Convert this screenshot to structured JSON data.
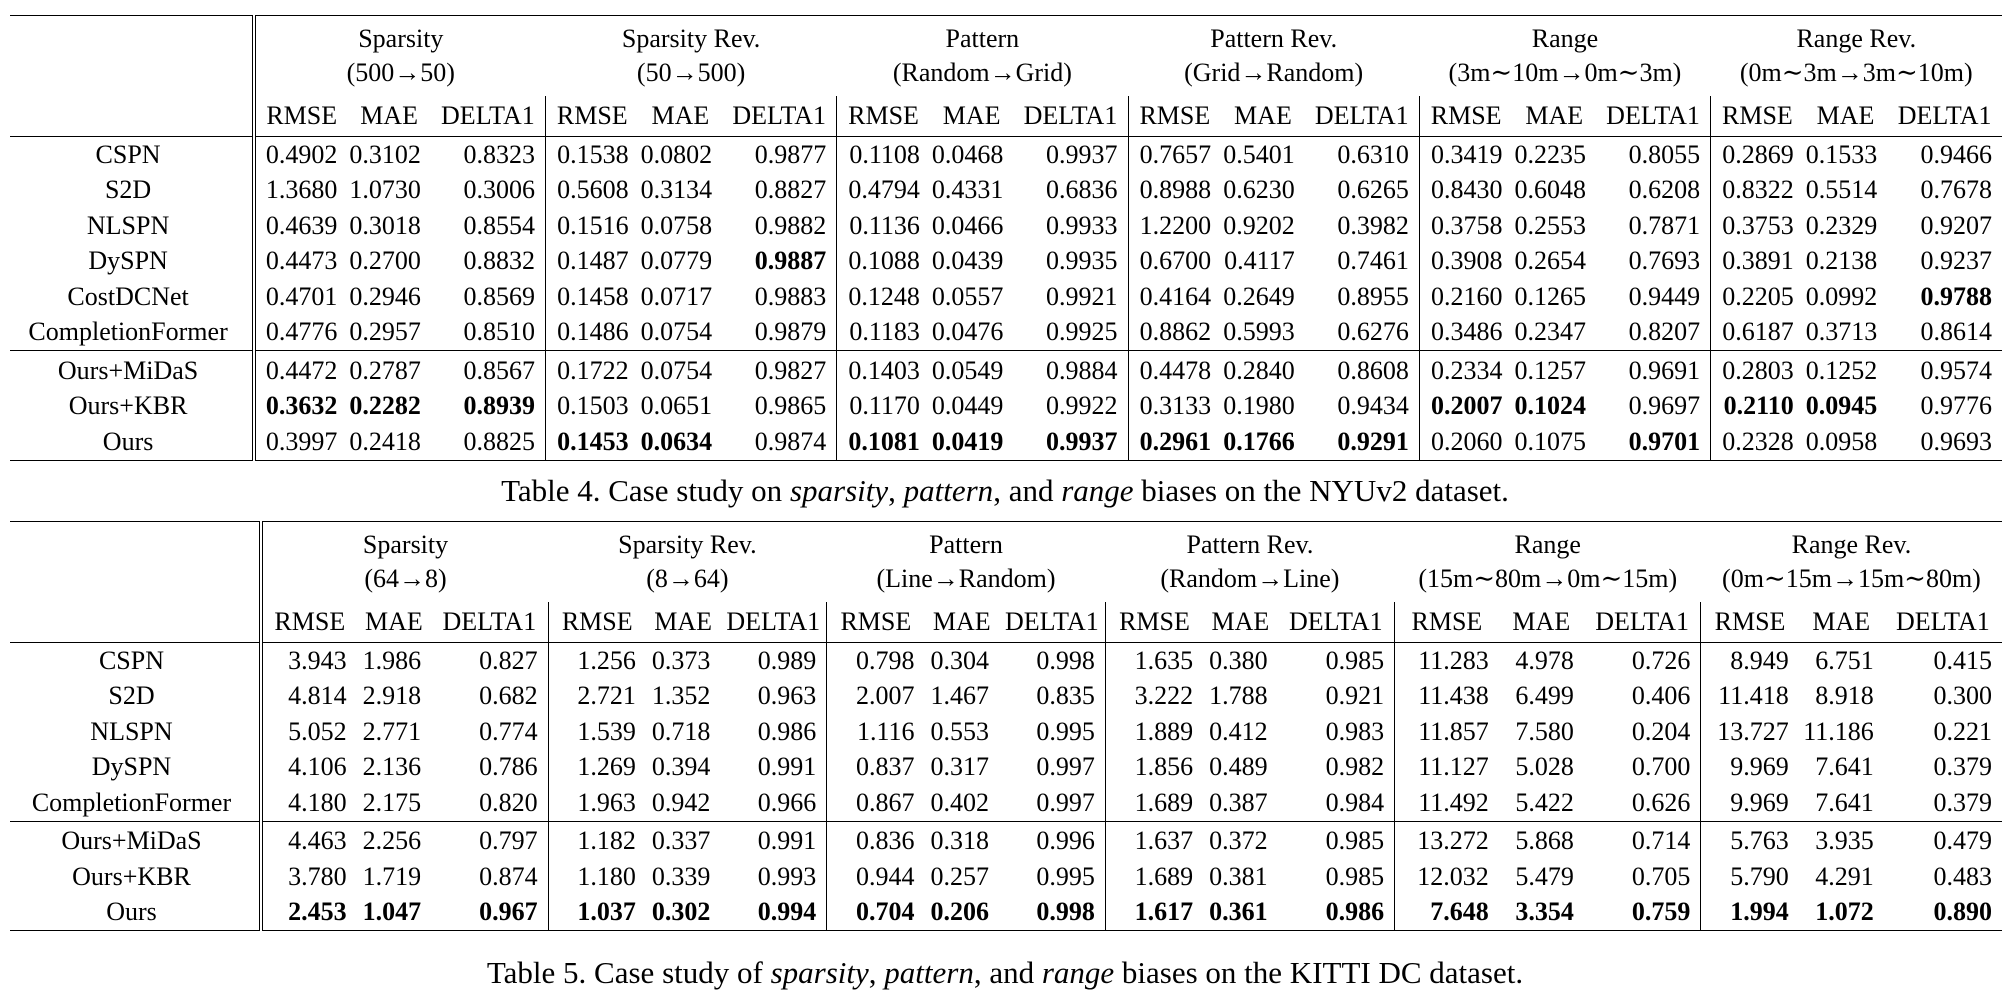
{
  "table4": {
    "caption": {
      "prefix": "Table 4. Case study on ",
      "w1": "sparsity",
      "sep1": ", ",
      "w2": "pattern",
      "sep2": ", and ",
      "w3": "range",
      "suffix": " biases on the NYUv2 dataset."
    },
    "groups": [
      {
        "name": "Sparsity",
        "sub": "(500→50)"
      },
      {
        "name": "Sparsity Rev.",
        "sub": "(50→500)"
      },
      {
        "name": "Pattern",
        "sub": "(Random→Grid)"
      },
      {
        "name": "Pattern Rev.",
        "sub": "(Grid→Random)"
      },
      {
        "name": "Range",
        "sub": "(3m∼10m→0m∼3m)"
      },
      {
        "name": "Range Rev.",
        "sub": "(0m∼3m→3m∼10m)"
      }
    ],
    "metrics": [
      "RMSE",
      "MAE",
      "DELTA1"
    ],
    "baselines": [
      {
        "method": "CSPN",
        "values": [
          "0.4902",
          "0.3102",
          "0.8323",
          "0.1538",
          "0.0802",
          "0.9877",
          "0.1108",
          "0.0468",
          "0.9937",
          "0.7657",
          "0.5401",
          "0.6310",
          "0.3419",
          "0.2235",
          "0.8055",
          "0.2869",
          "0.1533",
          "0.9466"
        ],
        "bold": []
      },
      {
        "method": "S2D",
        "values": [
          "1.3680",
          "1.0730",
          "0.3006",
          "0.5608",
          "0.3134",
          "0.8827",
          "0.4794",
          "0.4331",
          "0.6836",
          "0.8988",
          "0.6230",
          "0.6265",
          "0.8430",
          "0.6048",
          "0.6208",
          "0.8322",
          "0.5514",
          "0.7678"
        ],
        "bold": []
      },
      {
        "method": "NLSPN",
        "values": [
          "0.4639",
          "0.3018",
          "0.8554",
          "0.1516",
          "0.0758",
          "0.9882",
          "0.1136",
          "0.0466",
          "0.9933",
          "1.2200",
          "0.9202",
          "0.3982",
          "0.3758",
          "0.2553",
          "0.7871",
          "0.3753",
          "0.2329",
          "0.9207"
        ],
        "bold": []
      },
      {
        "method": "DySPN",
        "values": [
          "0.4473",
          "0.2700",
          "0.8832",
          "0.1487",
          "0.0779",
          "0.9887",
          "0.1088",
          "0.0439",
          "0.9935",
          "0.6700",
          "0.4117",
          "0.7461",
          "0.3908",
          "0.2654",
          "0.7693",
          "0.3891",
          "0.2138",
          "0.9237"
        ],
        "bold": [
          5
        ]
      },
      {
        "method": "CostDCNet",
        "values": [
          "0.4701",
          "0.2946",
          "0.8569",
          "0.1458",
          "0.0717",
          "0.9883",
          "0.1248",
          "0.0557",
          "0.9921",
          "0.4164",
          "0.2649",
          "0.8955",
          "0.2160",
          "0.1265",
          "0.9449",
          "0.2205",
          "0.0992",
          "0.9788"
        ],
        "bold": [
          17
        ]
      },
      {
        "method": "CompletionFormer",
        "values": [
          "0.4776",
          "0.2957",
          "0.8510",
          "0.1486",
          "0.0754",
          "0.9879",
          "0.1183",
          "0.0476",
          "0.9925",
          "0.8862",
          "0.5993",
          "0.6276",
          "0.3486",
          "0.2347",
          "0.8207",
          "0.6187",
          "0.3713",
          "0.8614"
        ],
        "bold": []
      }
    ],
    "ours": [
      {
        "method": "Ours+MiDaS",
        "values": [
          "0.4472",
          "0.2787",
          "0.8567",
          "0.1722",
          "0.0754",
          "0.9827",
          "0.1403",
          "0.0549",
          "0.9884",
          "0.4478",
          "0.2840",
          "0.8608",
          "0.2334",
          "0.1257",
          "0.9691",
          "0.2803",
          "0.1252",
          "0.9574"
        ],
        "bold": []
      },
      {
        "method": "Ours+KBR",
        "values": [
          "0.3632",
          "0.2282",
          "0.8939",
          "0.1503",
          "0.0651",
          "0.9865",
          "0.1170",
          "0.0449",
          "0.9922",
          "0.3133",
          "0.1980",
          "0.9434",
          "0.2007",
          "0.1024",
          "0.9697",
          "0.2110",
          "0.0945",
          "0.9776"
        ],
        "bold": [
          0,
          1,
          2,
          12,
          13,
          15,
          16
        ]
      },
      {
        "method": "Ours",
        "values": [
          "0.3997",
          "0.2418",
          "0.8825",
          "0.1453",
          "0.0634",
          "0.9874",
          "0.1081",
          "0.0419",
          "0.9937",
          "0.2961",
          "0.1766",
          "0.9291",
          "0.2060",
          "0.1075",
          "0.9701",
          "0.2328",
          "0.0958",
          "0.9693"
        ],
        "bold": [
          3,
          4,
          6,
          7,
          8,
          9,
          10,
          11,
          14
        ]
      }
    ]
  },
  "table5": {
    "caption": {
      "prefix": "Table 5. Case study of ",
      "w1": "sparsity",
      "sep1": ", ",
      "w2": "pattern",
      "sep2": ", and ",
      "w3": "range",
      "suffix": " biases on the KITTI DC dataset."
    },
    "groups": [
      {
        "name": "Sparsity",
        "sub": "(64→8)"
      },
      {
        "name": "Sparsity Rev.",
        "sub": "(8→64)"
      },
      {
        "name": "Pattern",
        "sub": "(Line→Random)"
      },
      {
        "name": "Pattern Rev.",
        "sub": "(Random→Line)"
      },
      {
        "name": "Range",
        "sub": "(15m∼80m→0m∼15m)"
      },
      {
        "name": "Range Rev.",
        "sub": "(0m∼15m→15m∼80m)"
      }
    ],
    "metrics": [
      "RMSE",
      "MAE",
      "DELTA1"
    ],
    "baselines": [
      {
        "method": "CSPN",
        "values": [
          "3.943",
          "1.986",
          "0.827",
          "1.256",
          "0.373",
          "0.989",
          "0.798",
          "0.304",
          "0.998",
          "1.635",
          "0.380",
          "0.985",
          "11.283",
          "4.978",
          "0.726",
          "8.949",
          "6.751",
          "0.415"
        ],
        "bold": []
      },
      {
        "method": "S2D",
        "values": [
          "4.814",
          "2.918",
          "0.682",
          "2.721",
          "1.352",
          "0.963",
          "2.007",
          "1.467",
          "0.835",
          "3.222",
          "1.788",
          "0.921",
          "11.438",
          "6.499",
          "0.406",
          "11.418",
          "8.918",
          "0.300"
        ],
        "bold": []
      },
      {
        "method": "NLSPN",
        "values": [
          "5.052",
          "2.771",
          "0.774",
          "1.539",
          "0.718",
          "0.986",
          "1.116",
          "0.553",
          "0.995",
          "1.889",
          "0.412",
          "0.983",
          "11.857",
          "7.580",
          "0.204",
          "13.727",
          "11.186",
          "0.221"
        ],
        "bold": []
      },
      {
        "method": "DySPN",
        "values": [
          "4.106",
          "2.136",
          "0.786",
          "1.269",
          "0.394",
          "0.991",
          "0.837",
          "0.317",
          "0.997",
          "1.856",
          "0.489",
          "0.982",
          "11.127",
          "5.028",
          "0.700",
          "9.969",
          "7.641",
          "0.379"
        ],
        "bold": []
      },
      {
        "method": "CompletionFormer",
        "values": [
          "4.180",
          "2.175",
          "0.820",
          "1.963",
          "0.942",
          "0.966",
          "0.867",
          "0.402",
          "0.997",
          "1.689",
          "0.387",
          "0.984",
          "11.492",
          "5.422",
          "0.626",
          "9.969",
          "7.641",
          "0.379"
        ],
        "bold": []
      }
    ],
    "ours": [
      {
        "method": "Ours+MiDaS",
        "values": [
          "4.463",
          "2.256",
          "0.797",
          "1.182",
          "0.337",
          "0.991",
          "0.836",
          "0.318",
          "0.996",
          "1.637",
          "0.372",
          "0.985",
          "13.272",
          "5.868",
          "0.714",
          "5.763",
          "3.935",
          "0.479"
        ],
        "bold": []
      },
      {
        "method": "Ours+KBR",
        "values": [
          "3.780",
          "1.719",
          "0.874",
          "1.180",
          "0.339",
          "0.993",
          "0.944",
          "0.257",
          "0.995",
          "1.689",
          "0.381",
          "0.985",
          "12.032",
          "5.479",
          "0.705",
          "5.790",
          "4.291",
          "0.483"
        ],
        "bold": []
      },
      {
        "method": "Ours",
        "values": [
          "2.453",
          "1.047",
          "0.967",
          "1.037",
          "0.302",
          "0.994",
          "0.704",
          "0.206",
          "0.998",
          "1.617",
          "0.361",
          "0.986",
          "7.648",
          "3.354",
          "0.759",
          "1.994",
          "1.072",
          "0.890"
        ],
        "bold": [
          0,
          1,
          2,
          3,
          4,
          5,
          6,
          7,
          8,
          9,
          10,
          11,
          12,
          13,
          14,
          15,
          16,
          17
        ]
      }
    ]
  }
}
